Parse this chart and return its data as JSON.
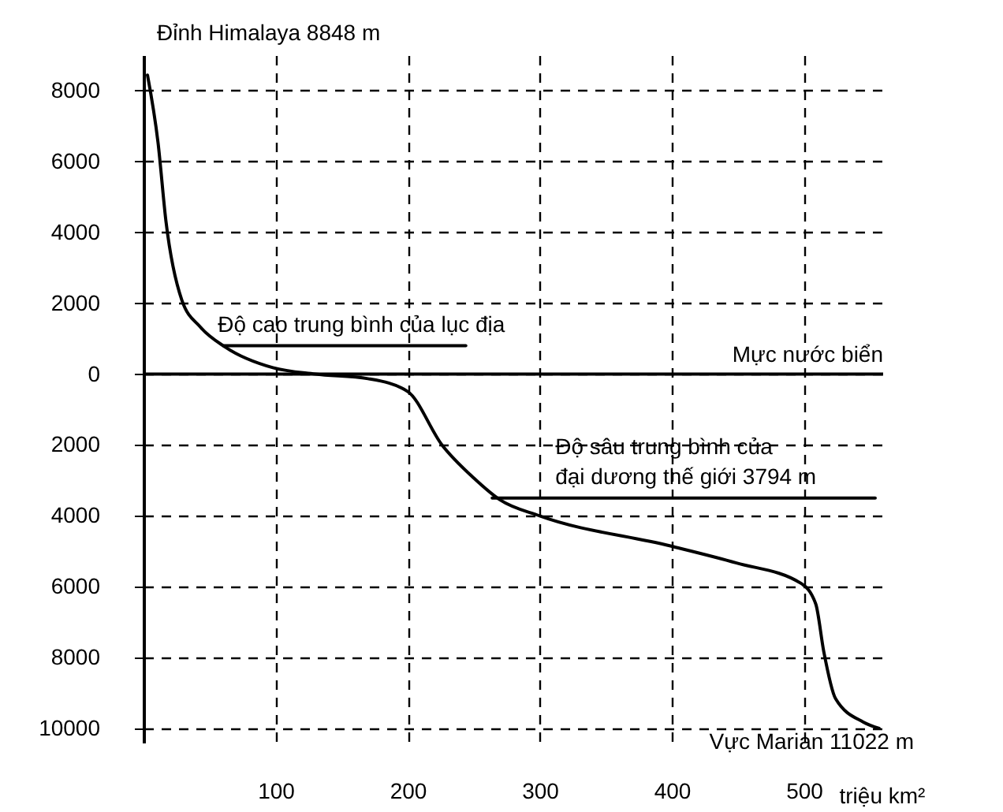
{
  "chart_data": {
    "type": "line",
    "ylabel": "Đỉnh Himalaya 8848 m",
    "xlabel": "triệu km²",
    "xlim": [
      0,
      560
    ],
    "xticks": [
      100,
      200,
      300,
      400,
      500
    ],
    "ylim": [
      -10400,
      9000
    ],
    "yticks": [
      8000,
      6000,
      4000,
      2000,
      0,
      {
        "value": -2000,
        "label": "2000"
      },
      {
        "value": -4000,
        "label": "4000"
      },
      {
        "value": -6000,
        "label": "6000"
      },
      {
        "value": -8000,
        "label": "8000"
      },
      {
        "value": -10000,
        "label": "10000"
      }
    ],
    "grid": true,
    "series": [
      {
        "color": "#000000",
        "x": [
          3,
          11,
          17,
          29,
          43,
          62,
          98,
          130,
          170,
          200,
          226,
          250,
          270,
          300,
          399,
          449,
          498,
          509,
          515,
          524,
          545,
          557
        ],
        "values": [
          8440,
          6530,
          4310,
          2090,
          1330,
          760,
          180,
          0,
          -130,
          -490,
          -2000,
          -2930,
          -3550,
          -4000,
          -4850,
          -5330,
          -5910,
          -6490,
          -7820,
          -9160,
          -9820,
          -10000
        ]
      },
      {
        "name": "Độ cao trung bình của lục địa",
        "color": "#000000",
        "x": [
          61,
          244
        ],
        "values": [
          800,
          800
        ]
      },
      {
        "name": "Độ sâu trung bình của\nđại dương thế giới 3794 m",
        "color": "#000000",
        "x": [
          264,
          554
        ],
        "values": [
          -3500,
          -3500
        ]
      }
    ],
    "ref_lines": [
      {
        "axis": "y",
        "value": 0,
        "label": "Mực nước biển"
      }
    ],
    "annotations": [
      {
        "text": "Vực Marian 11022 m",
        "x": 557,
        "y": -10000
      }
    ]
  }
}
